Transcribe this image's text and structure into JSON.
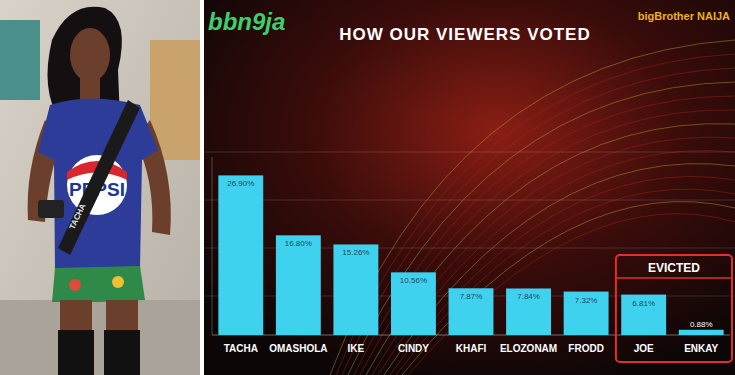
{
  "chart_data": {
    "type": "bar",
    "title": "HOW OUR VIEWERS VOTED",
    "categories": [
      "TACHA",
      "OMASHOLA",
      "IKE",
      "CINDY",
      "KHAFI",
      "ELOZONAM",
      "FRODD",
      "JOE",
      "ENKAY"
    ],
    "values": [
      26.9,
      16.8,
      15.26,
      10.56,
      7.87,
      7.84,
      7.32,
      6.81,
      0.88
    ],
    "value_labels": [
      "26.90%",
      "16.80%",
      "15.26%",
      "10.56%",
      "7.87%",
      "7.84%",
      "7.32%",
      "6.81%",
      "0.88%"
    ],
    "color": "#3fd2ef",
    "ylim": [
      0,
      30
    ],
    "grid": false,
    "data_labels": true,
    "tick_labels": "x",
    "annotations": [
      {
        "text": "EVICTED",
        "categories": [
          "JOE",
          "ENKAY"
        ]
      }
    ]
  },
  "logos": [
    "bbn9ja",
    "bigBrother NAIJA"
  ],
  "photo": {
    "shirt_text": "PEPSI",
    "strap_text": "TACHA"
  }
}
